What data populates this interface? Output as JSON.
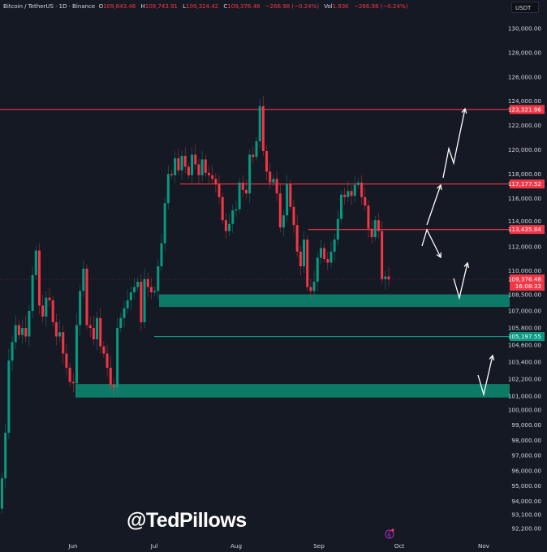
{
  "header": {
    "symbol": "Bitcoin / TetherUS · 1D · Binance",
    "open_label": "O",
    "open": "109,643.46",
    "high_label": "H",
    "high": "109,743.91",
    "low_label": "L",
    "low": "109,324.42",
    "close_label": "C",
    "close": "109,376.48",
    "change": "−266.98 (−0.24%)",
    "vol_label": "Vol",
    "vol": "1.93K",
    "change2": "−266.98 (−0.24%)"
  },
  "currency": "USDT",
  "watermark": "@TedPillows",
  "colors": {
    "background": "#151924",
    "up": "#089981",
    "down": "#f23645",
    "zone": "#0d7a67",
    "annotation": "#ffffff"
  },
  "chart_data": {
    "type": "candlestick",
    "interval": "1D",
    "x_labels": [
      "Jun",
      "Jul",
      "Aug",
      "Sep",
      "Oct",
      "Nov"
    ],
    "y_ticks": [
      130000,
      128000,
      126000,
      124000,
      122000,
      120000,
      118000,
      116000,
      114000,
      112000,
      110000,
      108500,
      107000,
      105800,
      104600,
      103400,
      102200,
      101000,
      100000,
      99000,
      98000,
      97000,
      96000,
      95000,
      94000,
      93100,
      92200
    ],
    "y_tick_labels": [
      "130,000.00",
      "128,000.00",
      "126,000.00",
      "124,000.00",
      "122,000.00",
      "120,000.00",
      "118,000.00",
      "116,000.00",
      "114,000.00",
      "112,000.00",
      "110,000.00",
      "108,500.00",
      "107,000.00",
      "105,800.00",
      "104,600.00",
      "103,400.00",
      "102,200.00",
      "101,000.00",
      "100,000.00",
      "99,000.00",
      "98,000.00",
      "97,000.00",
      "96,000.00",
      "95,000.00",
      "94,000.00",
      "93,100.00",
      "92,200.00"
    ],
    "first_open": 93500,
    "close": [
      95500,
      98500,
      103500,
      104800,
      106000,
      105300,
      105800,
      105200,
      107000,
      109700,
      111700,
      107400,
      106600,
      108000,
      107800,
      106200,
      105200,
      105500,
      104000,
      103000,
      102000,
      101900,
      106000,
      108500,
      110200,
      106000,
      105800,
      105000,
      106500,
      104500,
      104000,
      103000,
      101800,
      101600,
      105800,
      106500,
      107200,
      107800,
      108400,
      108800,
      109200,
      106200,
      109400,
      108800,
      108400,
      108500,
      110400,
      112300,
      115600,
      118000,
      117900,
      119300,
      118300,
      119500,
      118600,
      117900,
      119600,
      118800,
      117900,
      119200,
      118100,
      117900,
      117600,
      117200,
      116100,
      114200,
      113300,
      113900,
      115000,
      115100,
      117300,
      116700,
      116400,
      119600,
      119400,
      120700,
      123600,
      119900,
      118200,
      117300,
      117600,
      116400,
      113600,
      114600,
      117200,
      115300,
      113800,
      111600,
      110400,
      112600,
      108800,
      108500,
      109200,
      111100,
      111900,
      111000,
      110700,
      111600,
      112600,
      114300,
      116300,
      116100,
      116600,
      116200,
      117100,
      117300,
      116100,
      115400,
      113500,
      112800,
      114200,
      113300,
      109400,
      109600,
      109376.48
    ],
    "levels": [
      {
        "price": 123321.96,
        "label": "123,321.96",
        "color": "#f23645"
      },
      {
        "price": 117177.52,
        "label": "117,177.52",
        "color": "#f23645"
      },
      {
        "price": 113435.84,
        "label": "113,435.84",
        "color": "#f23645"
      },
      {
        "price": 105197.55,
        "label": "105,197.55",
        "color": "#089981"
      }
    ],
    "current_price": {
      "price": 109376.48,
      "label": "109,376.48",
      "countdown": "16:08:33"
    },
    "zones": [
      {
        "from": 107300,
        "to": 108250
      },
      {
        "from": 100900,
        "to": 101850
      }
    ]
  }
}
